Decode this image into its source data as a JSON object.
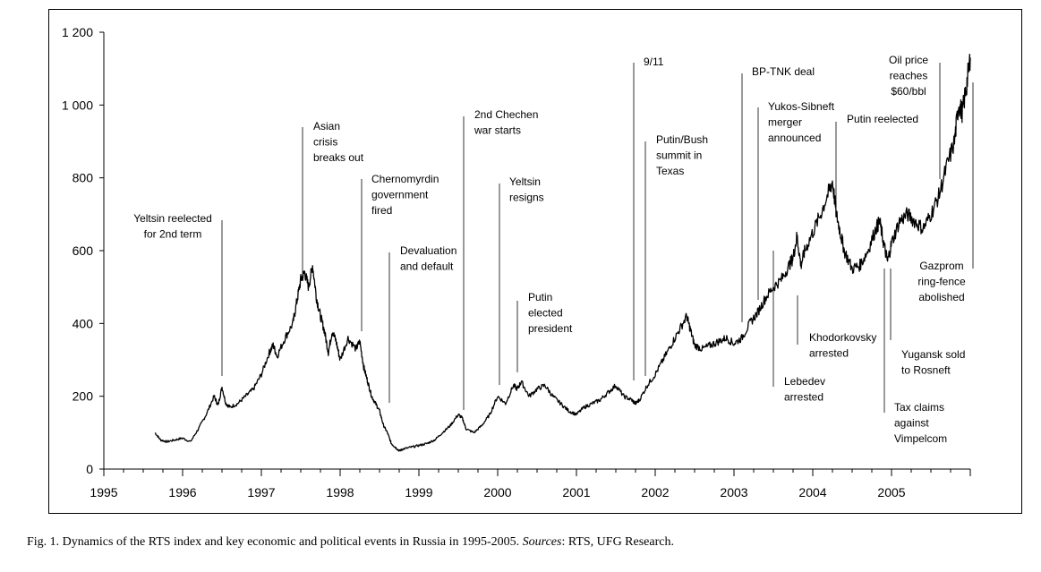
{
  "caption": {
    "lead": "Fig. 1. Dynamics of the RTS index and key economic and political events in Russia in 1995-2005.",
    "sources_label": "Sources",
    "sources_text": ": RTS, UFG Research."
  },
  "chart_data": {
    "type": "line",
    "title": "",
    "xlabel": "",
    "ylabel": "",
    "xlim": [
      1995.0,
      2006.0
    ],
    "ylim": [
      0,
      1200
    ],
    "x_tick_labels": [
      "1995",
      "1996",
      "1997",
      "1998",
      "1999",
      "2000",
      "2001",
      "2002",
      "2003",
      "2004",
      "2005"
    ],
    "y_tick_labels": [
      "0",
      "200",
      "400",
      "600",
      "800",
      "1 000",
      "1 200"
    ],
    "y_tick_values": [
      0,
      200,
      400,
      600,
      800,
      1000,
      1200
    ],
    "series": [
      {
        "name": "RTS index",
        "x": [
          1995.65,
          1995.72,
          1995.8,
          1995.9,
          1996.0,
          1996.1,
          1996.2,
          1996.3,
          1996.4,
          1996.45,
          1996.5,
          1996.55,
          1996.6,
          1996.7,
          1996.8,
          1996.9,
          1997.0,
          1997.1,
          1997.15,
          1997.2,
          1997.3,
          1997.4,
          1997.45,
          1997.5,
          1997.55,
          1997.6,
          1997.65,
          1997.7,
          1997.75,
          1997.8,
          1997.85,
          1997.9,
          1997.95,
          1998.0,
          1998.1,
          1998.2,
          1998.25,
          1998.3,
          1998.35,
          1998.4,
          1998.45,
          1998.5,
          1998.55,
          1998.6,
          1998.65,
          1998.7,
          1998.75,
          1998.8,
          1998.9,
          1999.0,
          1999.1,
          1999.2,
          1999.3,
          1999.4,
          1999.5,
          1999.55,
          1999.6,
          1999.7,
          1999.8,
          1999.9,
          2000.0,
          2000.1,
          2000.2,
          2000.25,
          2000.3,
          2000.4,
          2000.5,
          2000.6,
          2000.7,
          2000.8,
          2000.9,
          2001.0,
          2001.1,
          2001.2,
          2001.3,
          2001.4,
          2001.5,
          2001.6,
          2001.7,
          2001.75,
          2001.8,
          2001.9,
          2002.0,
          2002.1,
          2002.2,
          2002.3,
          2002.4,
          2002.45,
          2002.5,
          2002.6,
          2002.7,
          2002.8,
          2002.9,
          2003.0,
          2003.1,
          2003.2,
          2003.3,
          2003.4,
          2003.5,
          2003.6,
          2003.7,
          2003.75,
          2003.8,
          2003.85,
          2003.9,
          2004.0,
          2004.1,
          2004.2,
          2004.25,
          2004.3,
          2004.35,
          2004.4,
          2004.5,
          2004.6,
          2004.7,
          2004.8,
          2004.85,
          2004.9,
          2004.95,
          2005.0,
          2005.1,
          2005.2,
          2005.3,
          2005.4,
          2005.5,
          2005.6,
          2005.7,
          2005.8,
          2005.85,
          2005.9,
          2005.95,
          2006.0
        ],
        "y": [
          100,
          80,
          75,
          80,
          85,
          75,
          110,
          150,
          200,
          175,
          225,
          180,
          170,
          180,
          200,
          220,
          260,
          320,
          340,
          310,
          360,
          400,
          460,
          520,
          540,
          500,
          560,
          470,
          420,
          380,
          320,
          380,
          350,
          300,
          360,
          330,
          350,
          280,
          240,
          200,
          180,
          160,
          120,
          100,
          70,
          60,
          50,
          55,
          60,
          65,
          70,
          80,
          100,
          120,
          150,
          140,
          110,
          100,
          120,
          150,
          200,
          180,
          230,
          220,
          240,
          200,
          220,
          230,
          200,
          180,
          160,
          150,
          170,
          180,
          190,
          210,
          230,
          200,
          190,
          180,
          190,
          230,
          260,
          300,
          340,
          380,
          420,
          380,
          340,
          330,
          340,
          350,
          360,
          345,
          360,
          400,
          430,
          470,
          500,
          520,
          560,
          580,
          640,
          560,
          600,
          650,
          700,
          760,
          790,
          700,
          650,
          600,
          550,
          560,
          600,
          660,
          680,
          620,
          570,
          620,
          680,
          700,
          680,
          660,
          700,
          750,
          830,
          900,
          1000,
          980,
          1050,
          1130
        ]
      }
    ],
    "annotations": [
      {
        "label": "Yeltsin reelected for 2nd term",
        "lines": [
          "Yeltsin reelected",
          "for 2nd term"
        ]
      },
      {
        "label": "Asian crisis breaks out",
        "lines": [
          "Asian",
          "crisis",
          "breaks out"
        ]
      },
      {
        "label": "Chernomyrdin government fired",
        "lines": [
          "Chernomyrdin",
          "government",
          "fired"
        ]
      },
      {
        "label": "Devaluation and default",
        "lines": [
          "Devaluation",
          "and default"
        ]
      },
      {
        "label": "2nd Chechen war starts",
        "lines": [
          "2nd Chechen",
          "war starts"
        ]
      },
      {
        "label": "Yeltsin resigns",
        "lines": [
          "Yeltsin",
          "resigns"
        ]
      },
      {
        "label": "Putin elected president",
        "lines": [
          "Putin",
          "elected",
          "president"
        ]
      },
      {
        "label": "9/11",
        "lines": [
          "9/11"
        ]
      },
      {
        "label": "Putin/Bush summit in Texas",
        "lines": [
          "Putin/Bush",
          "summit in",
          "Texas"
        ]
      },
      {
        "label": "BP-TNK deal",
        "lines": [
          "BP-TNK deal"
        ]
      },
      {
        "label": "Yukos-Sibneft merger announced",
        "lines": [
          "Yukos-Sibneft",
          "merger",
          "announced"
        ]
      },
      {
        "label": "Putin reelected",
        "lines": [
          "Putin reelected"
        ]
      },
      {
        "label": "Oil price reaches $60/bbl",
        "lines": [
          "Oil price",
          "reaches",
          "$60/bbl"
        ]
      },
      {
        "label": "Gazprom ring-fence abolished",
        "lines": [
          "Gazprom",
          "ring-fence",
          "abolished"
        ]
      },
      {
        "label": "Khodorkovsky arrested",
        "lines": [
          "Khodorkovsky",
          "arrested"
        ]
      },
      {
        "label": "Lebedev arrested",
        "lines": [
          "Lebedev",
          "arrested"
        ]
      },
      {
        "label": "Yugansk sold to Rosneft",
        "lines": [
          "Yugansk sold",
          "to Rosneft"
        ]
      },
      {
        "label": "Tax claims against Vimpelcom",
        "lines": [
          "Tax claims",
          "against",
          "Vimpelcom"
        ]
      }
    ]
  }
}
